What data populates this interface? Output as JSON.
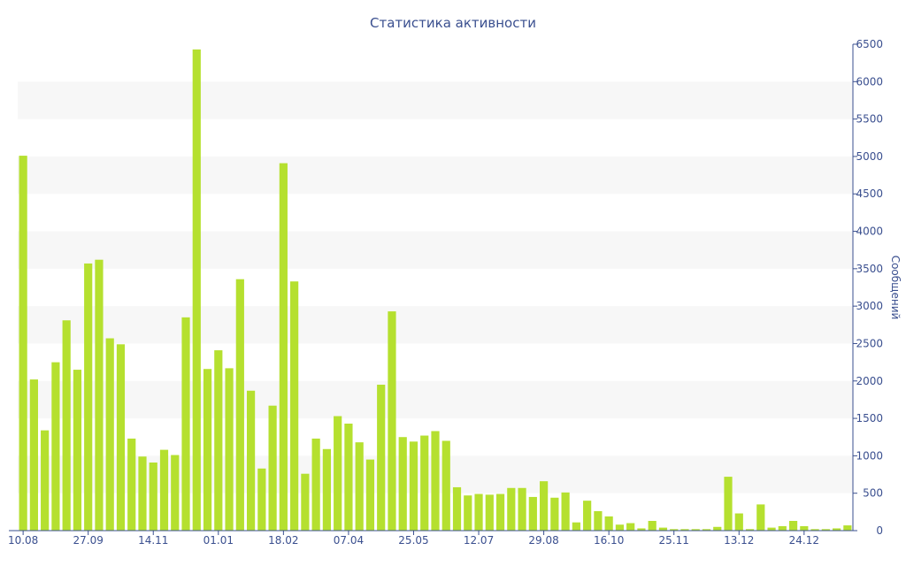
{
  "chart_data": {
    "type": "bar",
    "title": "Статистика активности",
    "xlabel": "",
    "ylabel": "Сообщений",
    "ylim": [
      0,
      6500
    ],
    "y_ticks": [
      0,
      500,
      1000,
      1500,
      2000,
      2500,
      3000,
      3500,
      4000,
      4500,
      5000,
      5500,
      6000,
      6500
    ],
    "y_axis_side": "right",
    "grid": "alternating horizontal bands",
    "legend": "none",
    "x_tick_labels": [
      "10.08",
      "27.09",
      "14.11",
      "01.01",
      "18.02",
      "07.04",
      "25.05",
      "12.07",
      "29.08",
      "16.10",
      "25.11",
      "13.12",
      "24.12"
    ],
    "x_tick_positions": [
      0,
      6,
      12,
      18,
      24,
      30,
      36,
      42,
      48,
      54,
      60,
      66,
      72
    ],
    "values": [
      5010,
      2020,
      1340,
      2250,
      2810,
      2150,
      3570,
      3620,
      2570,
      2490,
      1230,
      990,
      910,
      1080,
      1010,
      2850,
      6430,
      2160,
      2410,
      2170,
      3360,
      1870,
      830,
      1670,
      4910,
      3330,
      760,
      1230,
      1090,
      1530,
      1430,
      1180,
      950,
      1950,
      2930,
      1250,
      1190,
      1270,
      1330,
      1200,
      580,
      470,
      490,
      480,
      490,
      570,
      570,
      450,
      660,
      440,
      510,
      110,
      400,
      260,
      190,
      80,
      100,
      30,
      130,
      40,
      20,
      20,
      20,
      20,
      50,
      720,
      230,
      20,
      350,
      40,
      60,
      130,
      60,
      20,
      20,
      30,
      70
    ],
    "colors": {
      "bar": "#b5e02f",
      "axis": "#3a4f8f",
      "band": "#f7f7f7",
      "text": "#3a4f8f"
    }
  }
}
